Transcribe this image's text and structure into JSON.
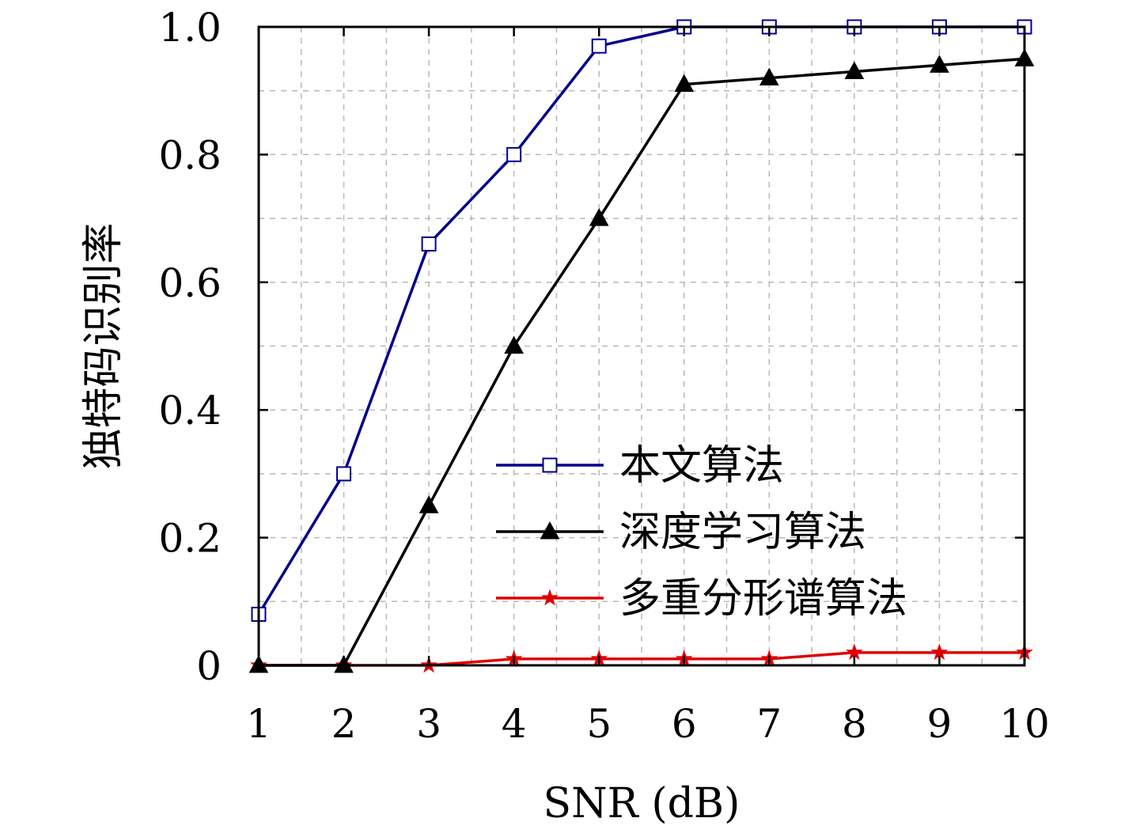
{
  "chart_data": {
    "type": "line",
    "title": "",
    "xlabel": "SNR (dB)",
    "ylabel": "独特码识别率",
    "x": [
      1,
      2,
      3,
      4,
      5,
      6,
      7,
      8,
      9,
      10
    ],
    "xlim": [
      1,
      10
    ],
    "ylim": [
      0,
      1.0
    ],
    "xticks": [
      1,
      2,
      3,
      4,
      5,
      6,
      7,
      8,
      9,
      10
    ],
    "xtick_labels": [
      "1",
      "2",
      "3",
      "4",
      "5",
      "6",
      "7",
      "8",
      "9",
      "10"
    ],
    "yticks": [
      0,
      0.2,
      0.4,
      0.6,
      0.8,
      1.0
    ],
    "ytick_labels": [
      "0",
      "0.2",
      "0.4",
      "0.6",
      "0.8",
      "1.0"
    ],
    "grid": true,
    "legend_position": "lower-right",
    "series": [
      {
        "name": "本文算法",
        "color": "#00008b",
        "marker": "square-open",
        "values": [
          0.08,
          0.3,
          0.66,
          0.8,
          0.97,
          1.0,
          1.0,
          1.0,
          1.0,
          1.0
        ]
      },
      {
        "name": "深度学习算法",
        "color": "#000000",
        "marker": "triangle-filled",
        "values": [
          0.0,
          0.0,
          0.25,
          0.5,
          0.7,
          0.91,
          0.92,
          0.93,
          0.94,
          0.95
        ]
      },
      {
        "name": "多重分形谱算法",
        "color": "#e00000",
        "marker": "star-filled",
        "values": [
          0.0,
          0.0,
          0.0,
          0.01,
          0.01,
          0.01,
          0.01,
          0.02,
          0.02,
          0.02
        ]
      }
    ]
  }
}
